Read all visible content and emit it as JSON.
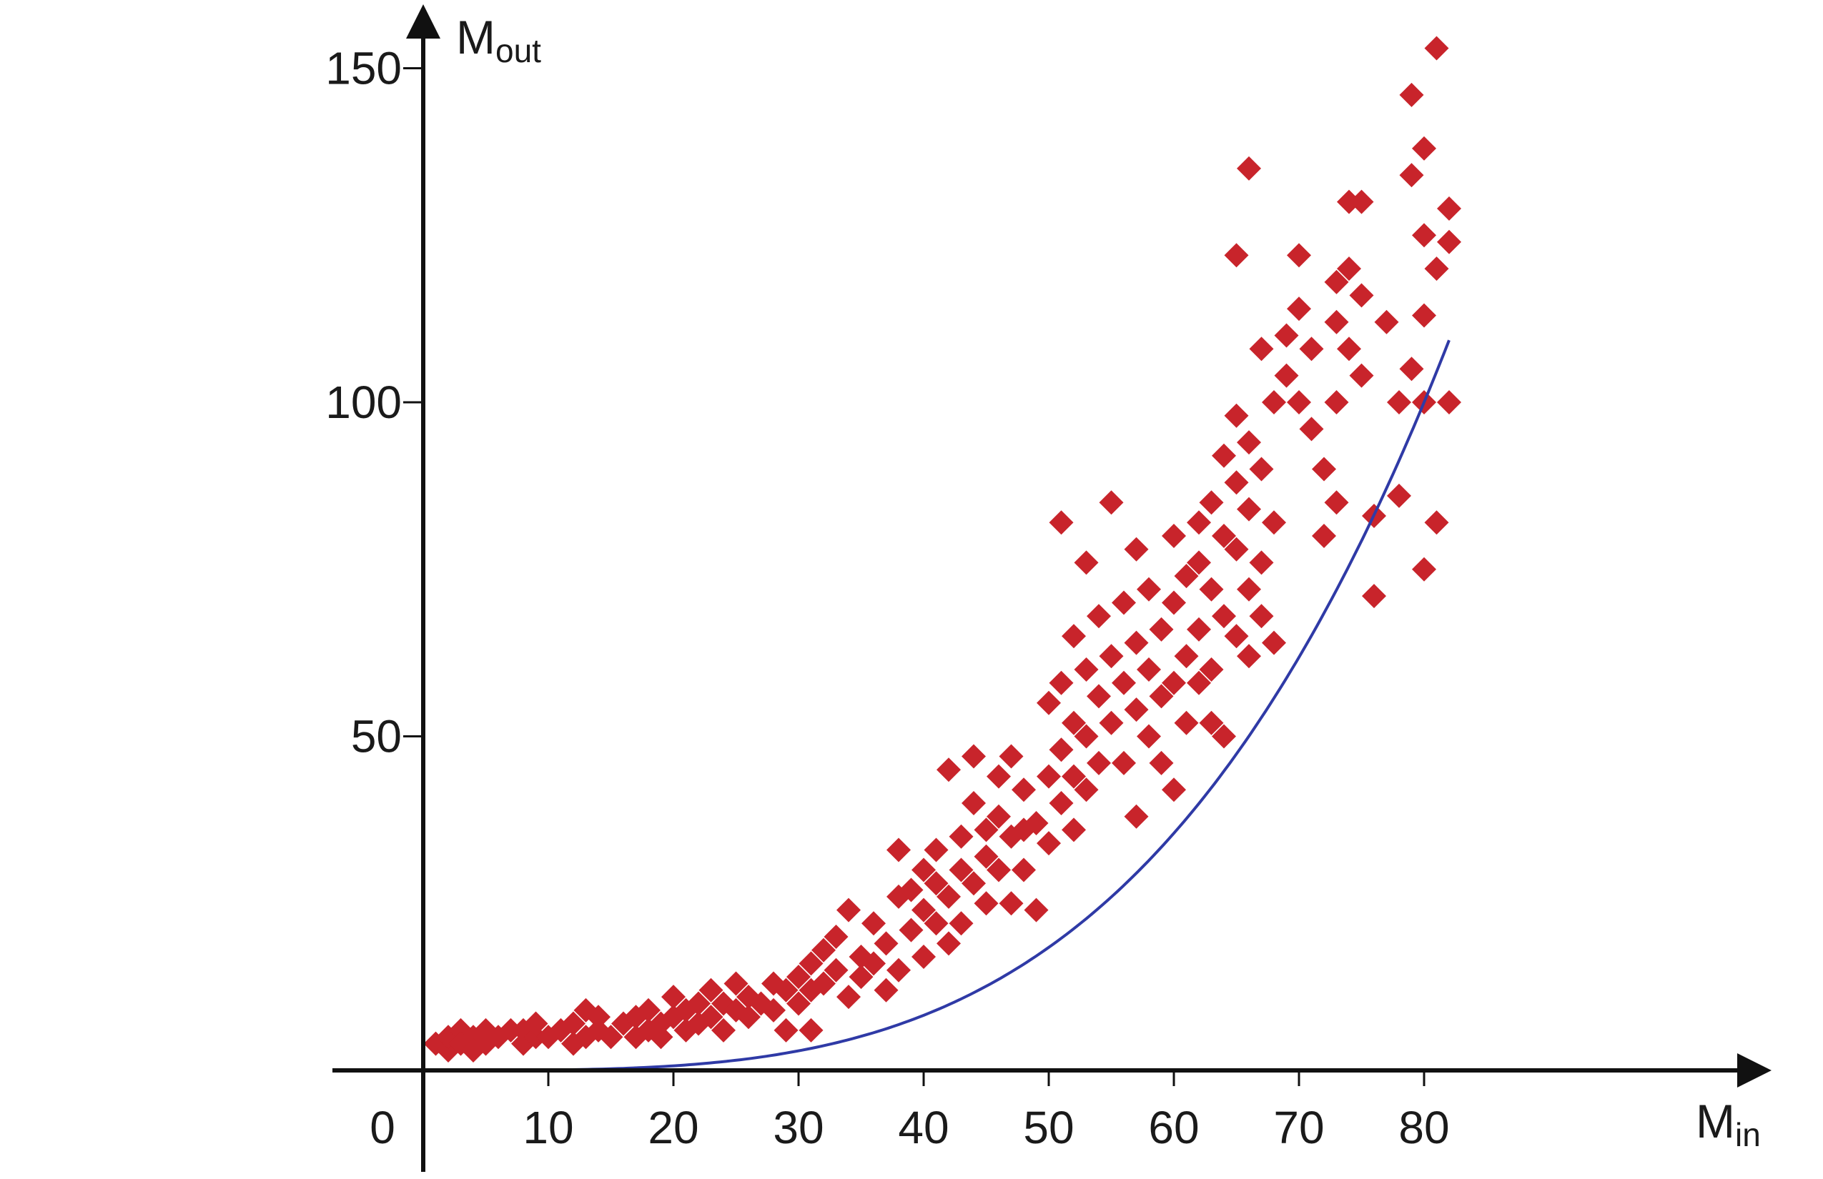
{
  "chart_data": {
    "type": "scatter",
    "title": "",
    "xlabel": "M",
    "xlabel_sub": "in",
    "ylabel": "M",
    "ylabel_sub": "out",
    "origin_label": "0",
    "xlim": [
      0,
      108
    ],
    "ylim": [
      -15,
      152
    ],
    "x_ticks": [
      10,
      20,
      30,
      40,
      50,
      60,
      70,
      80
    ],
    "x_tick_labels": [
      "10",
      "20",
      "30",
      "40",
      "50",
      "60",
      "70",
      "80"
    ],
    "y_ticks": [
      50,
      100,
      150
    ],
    "y_tick_labels": [
      "50",
      "100",
      "150"
    ],
    "grid": false,
    "colors": {
      "points": "#c8242b",
      "curve": "#2f3aa6",
      "axis": "#111111"
    },
    "marker": "diamond",
    "series": [
      {
        "type": "scatter",
        "points": [
          [
            1,
            4
          ],
          [
            2,
            3
          ],
          [
            2,
            5
          ],
          [
            3,
            6
          ],
          [
            3,
            4
          ],
          [
            4,
            5
          ],
          [
            4,
            3
          ],
          [
            5,
            6
          ],
          [
            5,
            4
          ],
          [
            6,
            5
          ],
          [
            7,
            6
          ],
          [
            8,
            6
          ],
          [
            8,
            4
          ],
          [
            9,
            5
          ],
          [
            9,
            7
          ],
          [
            10,
            5
          ],
          [
            11,
            6
          ],
          [
            12,
            4
          ],
          [
            12,
            7
          ],
          [
            13,
            9
          ],
          [
            13,
            5
          ],
          [
            14,
            8
          ],
          [
            14,
            6
          ],
          [
            15,
            5
          ],
          [
            16,
            7
          ],
          [
            17,
            8
          ],
          [
            17,
            5
          ],
          [
            18,
            6
          ],
          [
            18,
            9
          ],
          [
            19,
            7
          ],
          [
            19,
            5
          ],
          [
            20,
            8
          ],
          [
            20,
            11
          ],
          [
            21,
            9
          ],
          [
            21,
            6
          ],
          [
            22,
            7
          ],
          [
            22,
            10
          ],
          [
            23,
            8
          ],
          [
            23,
            12
          ],
          [
            24,
            6
          ],
          [
            24,
            10
          ],
          [
            25,
            9
          ],
          [
            25,
            13
          ],
          [
            26,
            8
          ],
          [
            26,
            11
          ],
          [
            27,
            10
          ],
          [
            28,
            9
          ],
          [
            28,
            13
          ],
          [
            29,
            12
          ],
          [
            29,
            6
          ],
          [
            30,
            14
          ],
          [
            30,
            10
          ],
          [
            31,
            16
          ],
          [
            31,
            12
          ],
          [
            31,
            6
          ],
          [
            32,
            18
          ],
          [
            32,
            13
          ],
          [
            33,
            15
          ],
          [
            33,
            20
          ],
          [
            34,
            11
          ],
          [
            34,
            24
          ],
          [
            35,
            17
          ],
          [
            35,
            14
          ],
          [
            36,
            22
          ],
          [
            36,
            16
          ],
          [
            37,
            12
          ],
          [
            37,
            19
          ],
          [
            38,
            26
          ],
          [
            38,
            15
          ],
          [
            38,
            33
          ],
          [
            39,
            21
          ],
          [
            39,
            27
          ],
          [
            40,
            17
          ],
          [
            40,
            24
          ],
          [
            40,
            30
          ],
          [
            41,
            22
          ],
          [
            41,
            28
          ],
          [
            41,
            33
          ],
          [
            42,
            19
          ],
          [
            42,
            26
          ],
          [
            42,
            45
          ],
          [
            43,
            35
          ],
          [
            43,
            30
          ],
          [
            43,
            22
          ],
          [
            44,
            40
          ],
          [
            44,
            28
          ],
          [
            44,
            47
          ],
          [
            45,
            36
          ],
          [
            45,
            32
          ],
          [
            45,
            25
          ],
          [
            46,
            44
          ],
          [
            46,
            38
          ],
          [
            46,
            30
          ],
          [
            47,
            47
          ],
          [
            47,
            35
          ],
          [
            47,
            25
          ],
          [
            48,
            42
          ],
          [
            48,
            36
          ],
          [
            48,
            30
          ],
          [
            49,
            24
          ],
          [
            49,
            37
          ],
          [
            50,
            55
          ],
          [
            50,
            44
          ],
          [
            50,
            34
          ],
          [
            51,
            58
          ],
          [
            51,
            48
          ],
          [
            51,
            40
          ],
          [
            51,
            82
          ],
          [
            52,
            65
          ],
          [
            52,
            52
          ],
          [
            52,
            44
          ],
          [
            52,
            36
          ],
          [
            53,
            60
          ],
          [
            53,
            50
          ],
          [
            53,
            42
          ],
          [
            53,
            76
          ],
          [
            54,
            68
          ],
          [
            54,
            56
          ],
          [
            54,
            46
          ],
          [
            55,
            85
          ],
          [
            55,
            62
          ],
          [
            55,
            52
          ],
          [
            56,
            70
          ],
          [
            56,
            58
          ],
          [
            56,
            46
          ],
          [
            57,
            64
          ],
          [
            57,
            54
          ],
          [
            57,
            38
          ],
          [
            57,
            78
          ],
          [
            58,
            60
          ],
          [
            58,
            50
          ],
          [
            58,
            72
          ],
          [
            59,
            66
          ],
          [
            59,
            56
          ],
          [
            59,
            46
          ],
          [
            60,
            80
          ],
          [
            60,
            70
          ],
          [
            60,
            58
          ],
          [
            60,
            42
          ],
          [
            61,
            74
          ],
          [
            61,
            62
          ],
          [
            61,
            52
          ],
          [
            62,
            82
          ],
          [
            62,
            76
          ],
          [
            62,
            66
          ],
          [
            62,
            58
          ],
          [
            63,
            85
          ],
          [
            63,
            72
          ],
          [
            63,
            60
          ],
          [
            63,
            52
          ],
          [
            64,
            92
          ],
          [
            64,
            80
          ],
          [
            64,
            68
          ],
          [
            64,
            50
          ],
          [
            65,
            98
          ],
          [
            65,
            88
          ],
          [
            65,
            78
          ],
          [
            65,
            65
          ],
          [
            65,
            122
          ],
          [
            66,
            135
          ],
          [
            66,
            94
          ],
          [
            66,
            84
          ],
          [
            66,
            72
          ],
          [
            66,
            62
          ],
          [
            67,
            108
          ],
          [
            67,
            90
          ],
          [
            67,
            76
          ],
          [
            67,
            68
          ],
          [
            68,
            100
          ],
          [
            68,
            82
          ],
          [
            68,
            64
          ],
          [
            69,
            110
          ],
          [
            69,
            104
          ],
          [
            70,
            122
          ],
          [
            70,
            114
          ],
          [
            70,
            100
          ],
          [
            71,
            108
          ],
          [
            71,
            96
          ],
          [
            72,
            80
          ],
          [
            72,
            90
          ],
          [
            73,
            118
          ],
          [
            73,
            112
          ],
          [
            73,
            100
          ],
          [
            73,
            85
          ],
          [
            74,
            130
          ],
          [
            74,
            120
          ],
          [
            74,
            108
          ],
          [
            75,
            116
          ],
          [
            75,
            104
          ],
          [
            75,
            130
          ],
          [
            76,
            83
          ],
          [
            76,
            71
          ],
          [
            77,
            112
          ],
          [
            78,
            86
          ],
          [
            78,
            100
          ],
          [
            79,
            105
          ],
          [
            79,
            134
          ],
          [
            79,
            146
          ],
          [
            80,
            138
          ],
          [
            80,
            125
          ],
          [
            80,
            113
          ],
          [
            80,
            100
          ],
          [
            80,
            75
          ],
          [
            81,
            153
          ],
          [
            81,
            120
          ],
          [
            81,
            82
          ],
          [
            82,
            129
          ],
          [
            82,
            100
          ],
          [
            82,
            124
          ]
        ]
      },
      {
        "type": "line",
        "function": "M_out = 100*(M_in/80)^3.6",
        "x_range": [
          0.5,
          82
        ]
      }
    ]
  }
}
